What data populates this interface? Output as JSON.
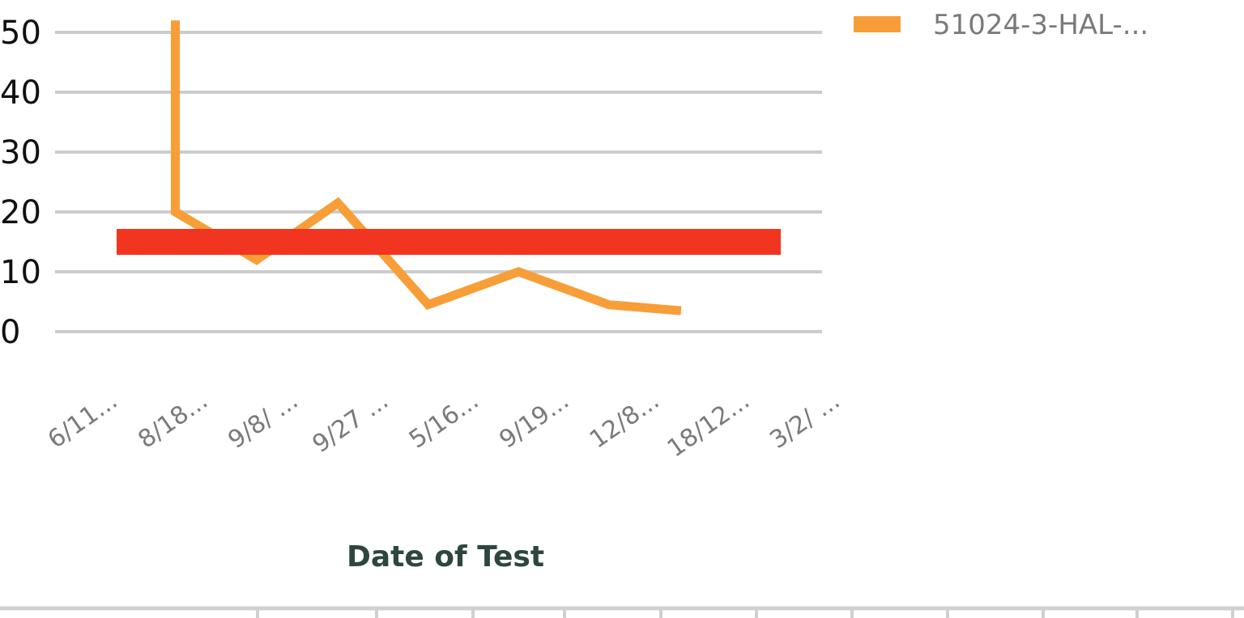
{
  "chart_data": {
    "type": "line",
    "xlabel": "Date  of Test",
    "ylabel": "",
    "ylim": [
      0,
      50
    ],
    "yticks": [
      "0",
      "10",
      "20",
      "30",
      "40",
      "50"
    ],
    "categories": [
      "6/11...",
      "8/18...",
      "9/8/ ...",
      "9/27 ...",
      "5/16...",
      "9/19...",
      "12/8...",
      "18/12...",
      "3/2/ ..."
    ],
    "series": [
      {
        "name": "51024-3-HAL-...",
        "color": "#F79E38",
        "points": [
          {
            "x": 1.0,
            "y": 52
          },
          {
            "x": 1.0,
            "y": 20
          },
          {
            "x": 1.9,
            "y": 12
          },
          {
            "x": 2.8,
            "y": 21.5
          },
          {
            "x": 3.8,
            "y": 4.5
          },
          {
            "x": 4.8,
            "y": 10
          },
          {
            "x": 5.8,
            "y": 4.5
          },
          {
            "x": 6.6,
            "y": 3.5
          }
        ]
      }
    ],
    "reference_line": {
      "y": 15,
      "color": "#F23520"
    },
    "grid": true,
    "gridline_color": "#cccccc",
    "legend_position": "top-right"
  }
}
